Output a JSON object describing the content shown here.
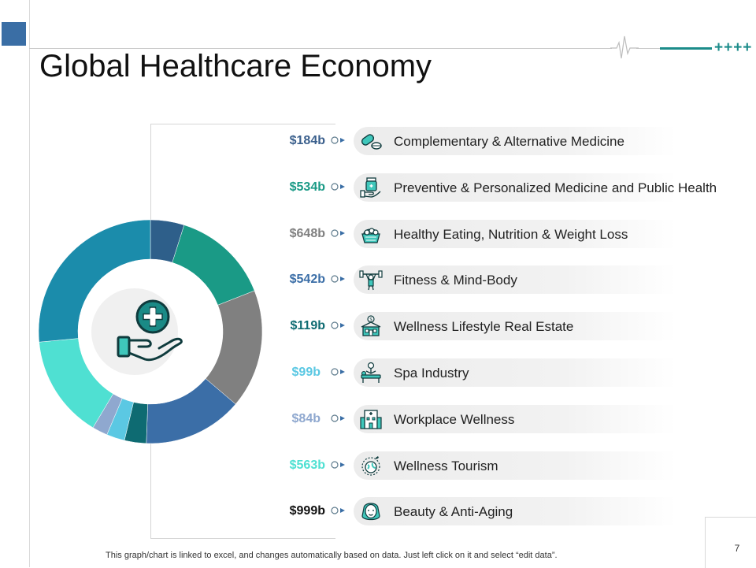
{
  "slide": {
    "title": "Global Healthcare Economy",
    "footnote": "This graph/chart is linked to excel, and changes automatically based on data. Just left click on it and select “edit data”.",
    "page_number": "7",
    "decor_plus": "++++"
  },
  "colors": {
    "accent": "#1c8c8a",
    "corner": "#3a6ea5",
    "segments": [
      "#2e5f8a",
      "#1a9a86",
      "#808080",
      "#3b6ea7",
      "#0e6b72",
      "#5bc8e3",
      "#8fa8cf",
      "#4fe0d2",
      "#1b8cab"
    ],
    "values": [
      "#3a5f8c",
      "#1a9a86",
      "#808080",
      "#3b6ea7",
      "#0e6b72",
      "#5bc8e3",
      "#8fa8cf",
      "#4fe0d2",
      "#111111"
    ]
  },
  "chart_data": {
    "type": "donut",
    "categories": [
      "Complementary & Alternative Medicine",
      "Preventive & Personalized Medicine and Public Health",
      "Healthy Eating, Nutrition & Weight Loss",
      "Fitness & Mind-Body",
      "Wellness Lifestyle Real Estate",
      "Spa Industry",
      "Workplace Wellness",
      "Wellness Tourism",
      "Beauty & Anti-Aging"
    ],
    "values": [
      184,
      534,
      648,
      542,
      119,
      99,
      84,
      563,
      999
    ],
    "value_labels": [
      "$184b",
      "$534b",
      "$648b",
      "$542b",
      "$119b",
      "$99b",
      "$84b",
      "$563b",
      "$999b"
    ],
    "icons": [
      "pills-icon",
      "medicine-hand-icon",
      "healthy-food-basket-icon",
      "weightlifting-icon",
      "real-estate-house-icon",
      "spa-massage-icon",
      "workplace-building-icon",
      "globe-tourism-icon",
      "beauty-face-icon"
    ],
    "unit": "$ billion"
  }
}
